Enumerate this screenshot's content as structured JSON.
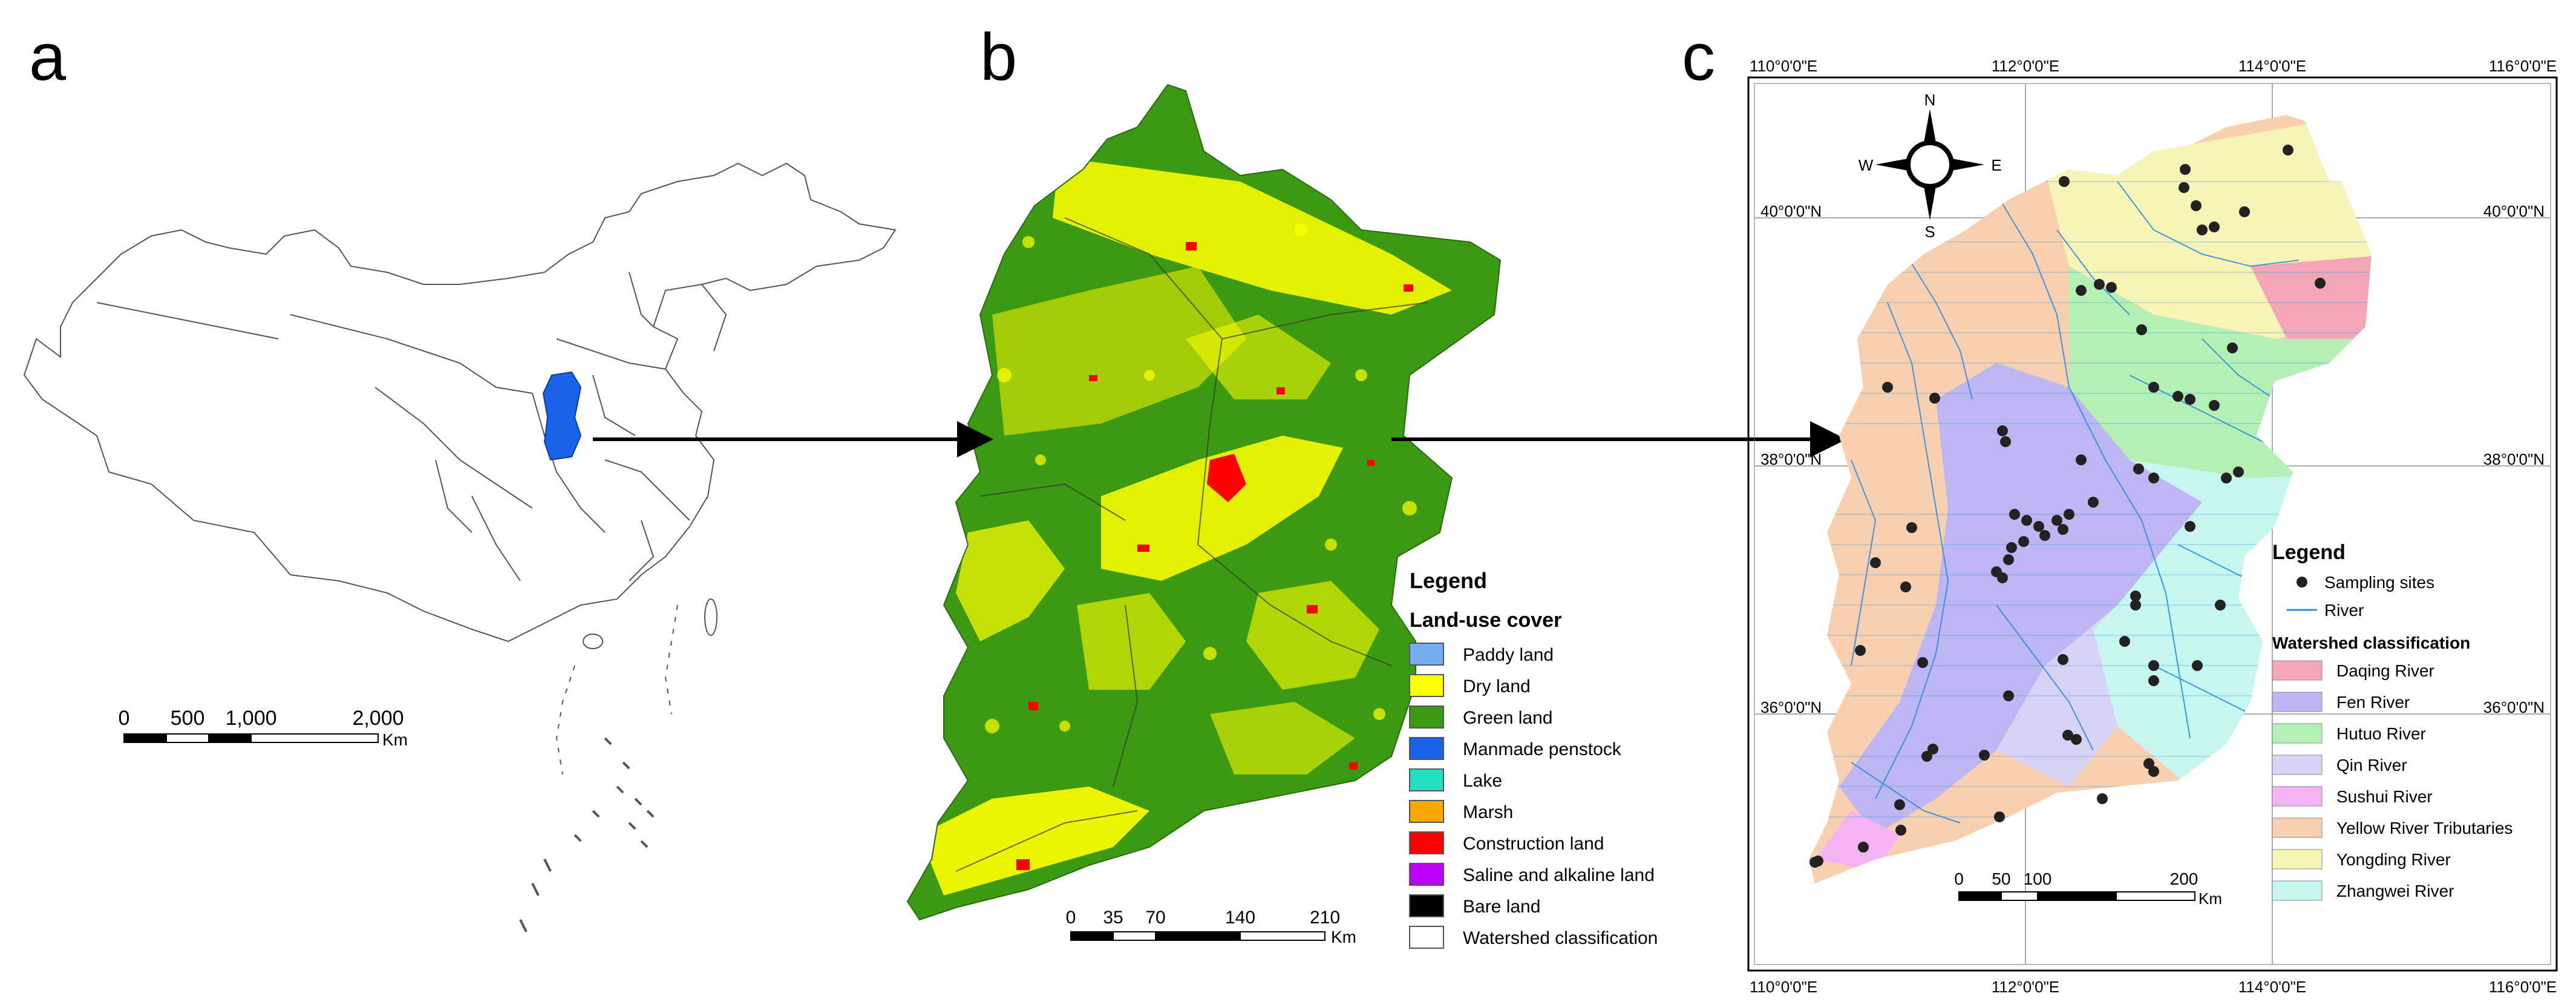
{
  "panels": {
    "a": {
      "letter": "a",
      "scale": {
        "ticks": [
          "0",
          "500",
          "1,000",
          "2,000"
        ],
        "unit": "Km"
      }
    },
    "b": {
      "letter": "b",
      "legend": {
        "title": "Legend",
        "subtitle": "Land-use cover",
        "items": [
          {
            "label": "Paddy land",
            "color": "#74aef0"
          },
          {
            "label": "Dry land",
            "color": "#ffff00"
          },
          {
            "label": "Green land",
            "color": "#3c9a12"
          },
          {
            "label": "Manmade penstock",
            "color": "#1a62e8"
          },
          {
            "label": "Lake",
            "color": "#20e0c0"
          },
          {
            "label": "Marsh",
            "color": "#ffa500"
          },
          {
            "label": "Construction land",
            "color": "#ff0000"
          },
          {
            "label": "Saline and alkaline land",
            "color": "#c000ff"
          },
          {
            "label": "Bare land",
            "color": "#000000"
          },
          {
            "label": "Watershed classification",
            "color": "#ffffff"
          }
        ]
      },
      "scale": {
        "ticks": [
          "0",
          "35",
          "70",
          "140",
          "210"
        ],
        "unit": "Km"
      }
    },
    "c": {
      "letter": "c",
      "top_lon_labels": [
        "110°0'0\"E",
        "112°0'0\"E",
        "114°0'0\"E",
        "116°0'0\"E"
      ],
      "bottom_lon_labels": [
        "110°0'0\"E",
        "112°0'0\"E",
        "114°0'0\"E",
        "116°0'0\"E"
      ],
      "left_lat_labels": [
        "40°0'0\"N",
        "38°0'0\"N",
        "36°0'0\"N"
      ],
      "right_lat_labels": [
        "40°0'0\"N",
        "38°0'0\"N",
        "36°0'0\"N"
      ],
      "compass": {
        "n": "N",
        "s": "S",
        "e": "E",
        "w": "W"
      },
      "legend": {
        "title": "Legend",
        "sites_label": "Sampling sites",
        "river_label": "River",
        "river_color": "#2a8fe0",
        "watershed_title": "Watershed classification",
        "items": [
          {
            "label": "Daqing River",
            "color": "#f4a6b8"
          },
          {
            "label": "Fen River",
            "color": "#bdb6f2"
          },
          {
            "label": "Hutuo River",
            "color": "#b4f0b4"
          },
          {
            "label": "Qin River",
            "color": "#d7d3f7"
          },
          {
            "label": "Sushui River",
            "color": "#f4b3f4"
          },
          {
            "label": "Yellow River Tributaries",
            "color": "#f8d0b0"
          },
          {
            "label": "Yongding River",
            "color": "#f8f4b8"
          },
          {
            "label": "Zhangwei River",
            "color": "#c6f6f0"
          }
        ]
      },
      "scale": {
        "ticks": [
          "0",
          "50",
          "100",
          "200"
        ],
        "unit": "Km"
      }
    }
  }
}
